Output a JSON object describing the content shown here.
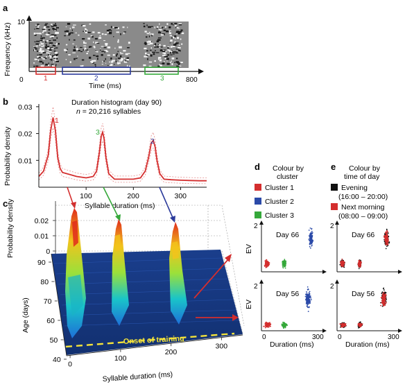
{
  "panels": {
    "a": {
      "letter": "a",
      "ylabel": "Frequency (kHz)",
      "y_top_tick": "10",
      "x_zero_tick": "0",
      "x_end_tick": "800",
      "xlabel": "Time (ms)",
      "segments": [
        {
          "label": "1",
          "color": "#d42e2e"
        },
        {
          "label": "2",
          "color": "#2b3a9b"
        },
        {
          "label": "3",
          "color": "#35a83a"
        }
      ]
    },
    "b": {
      "letter": "b",
      "title": "Duration histogram (day 90)",
      "subtitle_n": "n",
      "subtitle_rest": " = 20,216 syllables",
      "ylabel": "Probability density",
      "xlabel": "Syllable duration (ms)",
      "peak_labels": [
        {
          "label": "1",
          "color": "#d42e2e"
        },
        {
          "label": "3",
          "color": "#35a83a"
        },
        {
          "label": "2",
          "color": "#2b3a9b"
        }
      ]
    },
    "c": {
      "letter": "c",
      "zlabel": "Probability density",
      "z_ticks": [
        "0.02",
        "0.01",
        "0"
      ],
      "age_label": "Age (days)",
      "age_ticks": [
        "90",
        "80",
        "70",
        "60",
        "50",
        "40"
      ],
      "xlabel": "Syllable duration (ms)",
      "x_ticks": [
        "0",
        "100",
        "200",
        "300"
      ],
      "onset_label": "Onset of training"
    },
    "d": {
      "letter": "d",
      "title_lines": [
        "Colour by",
        "cluster"
      ],
      "legend": [
        {
          "label": "Cluster 1",
          "color": "#d42e2e"
        },
        {
          "label": "Cluster 2",
          "color": "#2b4aa8"
        },
        {
          "label": "Cluster 3",
          "color": "#35a83a"
        }
      ],
      "ylabel": "EV",
      "xlabel": "Duration (ms)",
      "top_day": "Day 66",
      "bottom_day": "Day 56",
      "y_top_tick": "2",
      "x_zero_tick": "0",
      "x_end_tick": "300"
    },
    "e": {
      "letter": "e",
      "title_lines": [
        "Colour by",
        "time of day"
      ],
      "legend": [
        {
          "label": "Evening",
          "sub": "(16:00 – 20:00)",
          "color": "#111111"
        },
        {
          "label": "Next morning",
          "sub": "(08:00 – 09:00)",
          "color": "#d42e2e"
        }
      ],
      "xlabel": "Duration (ms)",
      "top_day": "Day 66",
      "bottom_day": "Day 56",
      "y_top_tick": "2",
      "x_zero_tick": "0",
      "x_end_tick": "300"
    }
  },
  "chart_data": [
    {
      "type": "line",
      "title": "Duration histogram (day 90)",
      "xlabel": "Syllable duration (ms)",
      "ylabel": "Probability density",
      "xlim": [
        0,
        355
      ],
      "ylim": [
        0,
        0.031
      ],
      "x_ticks": [
        100,
        200,
        300
      ],
      "y_ticks": [
        0.01,
        0.02,
        0.03
      ],
      "series": [
        {
          "color": "#d42e2e",
          "x": [
            0,
            10,
            20,
            25,
            30,
            35,
            40,
            45,
            50,
            60,
            80,
            100,
            115,
            122,
            128,
            132,
            135,
            138,
            142,
            148,
            160,
            180,
            200,
            215,
            225,
            232,
            238,
            242,
            246,
            250,
            256,
            265,
            280,
            300,
            320,
            340,
            355
          ],
          "y": [
            0.004,
            0.006,
            0.012,
            0.021,
            0.026,
            0.021,
            0.011,
            0.007,
            0.0055,
            0.005,
            0.004,
            0.0035,
            0.004,
            0.006,
            0.013,
            0.019,
            0.0205,
            0.018,
            0.011,
            0.005,
            0.003,
            0.003,
            0.003,
            0.0035,
            0.006,
            0.011,
            0.0165,
            0.0175,
            0.015,
            0.01,
            0.005,
            0.003,
            0.0028,
            0.0026,
            0.0025,
            0.0024,
            0.0024
          ]
        }
      ]
    },
    {
      "type": "scatter",
      "title": "Day 66",
      "xlabel": "Duration (ms)",
      "ylabel": "EV",
      "xlim": [
        0,
        300
      ],
      "ylim": [
        0,
        2
      ],
      "series": [
        {
          "name": "Cluster 1",
          "color": "#d42e2e",
          "center": [
            28,
            0.3
          ],
          "spread": [
            14,
            0.18
          ]
        },
        {
          "name": "Cluster 3",
          "color": "#35a83a",
          "center": [
            117,
            0.3
          ],
          "spread": [
            12,
            0.18
          ]
        },
        {
          "name": "Cluster 2",
          "color": "#2b4aa8",
          "center": [
            255,
            1.55
          ],
          "spread": [
            14,
            0.38
          ]
        }
      ]
    },
    {
      "type": "scatter",
      "title": "Day 56",
      "xlabel": "Duration (ms)",
      "ylabel": "EV",
      "xlim": [
        0,
        300
      ],
      "ylim": [
        0,
        2
      ],
      "series": [
        {
          "name": "Cluster 1",
          "color": "#d42e2e",
          "center": [
            32,
            0.18
          ],
          "spread": [
            20,
            0.13
          ]
        },
        {
          "name": "Cluster 3",
          "color": "#35a83a",
          "center": [
            118,
            0.18
          ],
          "spread": [
            16,
            0.13
          ]
        },
        {
          "name": "Cluster 2",
          "color": "#2b4aa8",
          "center": [
            240,
            1.5
          ],
          "spread": [
            16,
            0.45
          ]
        }
      ]
    },
    {
      "type": "scatter",
      "title": "Day 66",
      "xlabel": "Duration (ms)",
      "ylabel": "EV",
      "xlim": [
        0,
        300
      ],
      "ylim": [
        0,
        2
      ],
      "series": [
        {
          "name": "Evening",
          "color": "#111111",
          "clusters": [
            [
              28,
              0.3,
              14,
              0.18
            ],
            [
              117,
              0.3,
              12,
              0.18
            ],
            [
              255,
              1.55,
              14,
              0.38
            ]
          ]
        },
        {
          "name": "Next morning",
          "color": "#d42e2e",
          "clusters": [
            [
              28,
              0.3,
              12,
              0.15
            ],
            [
              117,
              0.3,
              10,
              0.15
            ],
            [
              255,
              1.55,
              12,
              0.32
            ]
          ]
        }
      ]
    },
    {
      "type": "scatter",
      "title": "Day 56",
      "xlabel": "Duration (ms)",
      "ylabel": "EV",
      "xlim": [
        0,
        300
      ],
      "ylim": [
        0,
        2
      ],
      "series": [
        {
          "name": "Evening",
          "color": "#111111",
          "clusters": [
            [
              32,
              0.18,
              18,
              0.12
            ],
            [
              118,
              0.18,
              14,
              0.12
            ],
            [
              240,
              1.5,
              16,
              0.42
            ]
          ]
        },
        {
          "name": "Next morning",
          "color": "#d42e2e",
          "clusters": [
            [
              32,
              0.18,
              16,
              0.1
            ],
            [
              118,
              0.18,
              12,
              0.1
            ],
            [
              240,
              1.45,
              14,
              0.35
            ]
          ]
        }
      ]
    }
  ]
}
